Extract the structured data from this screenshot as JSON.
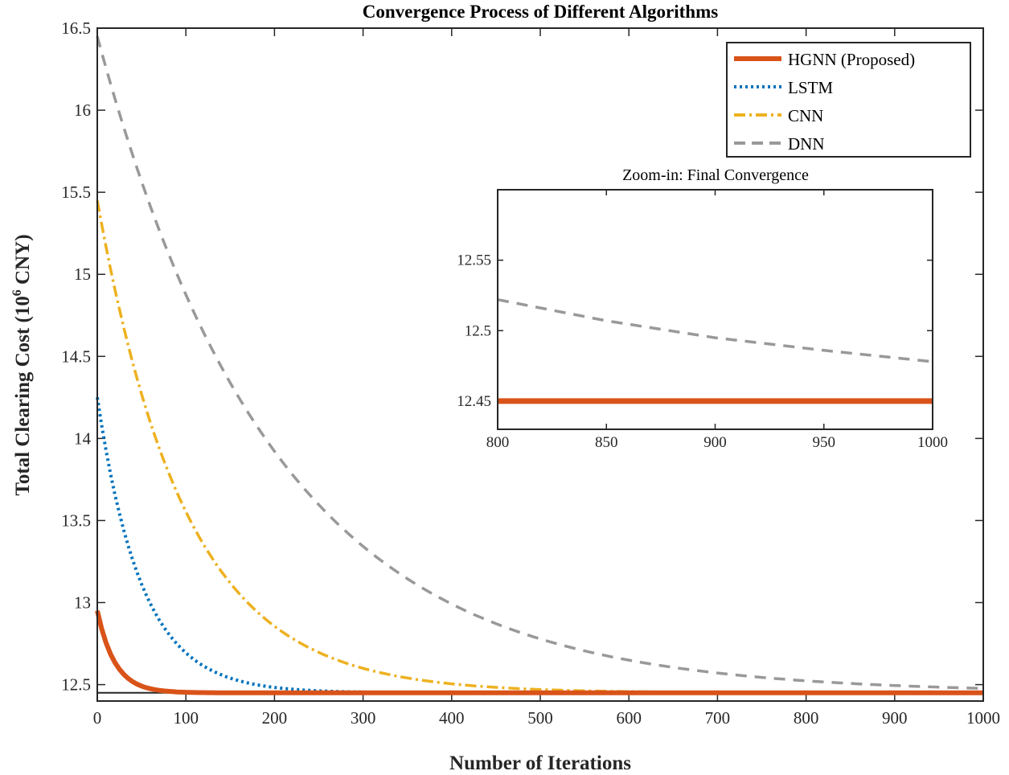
{
  "chart_data": [
    {
      "type": "line",
      "title": "Convergence Process of Different Algorithms",
      "xlabel": "Number of Iterations",
      "ylabel": "Total Clearing Cost (10",
      "ylabel_sup": "6",
      "ylabel_tail": " CNY)",
      "xlim": [
        0,
        1000
      ],
      "ylim": [
        12.4,
        16.5
      ],
      "xticks": [
        "0",
        "100",
        "200",
        "300",
        "400",
        "500",
        "600",
        "700",
        "800",
        "900",
        "1000"
      ],
      "yticks": [
        "12.5",
        "13",
        "13.5",
        "14",
        "14.5",
        "15",
        "15.5",
        "16",
        "16.5"
      ],
      "legend_position": "top-right",
      "reference_line": 12.45,
      "series": [
        {
          "name": "HGNN (Proposed)",
          "color": "#D95319",
          "style": "solid",
          "start": 12.95,
          "end": 12.45,
          "tau": 20
        },
        {
          "name": "LSTM",
          "color": "#0072BD",
          "style": "dotted",
          "start": 14.25,
          "end": 12.45,
          "tau": 50
        },
        {
          "name": "CNN",
          "color": "#EDB120",
          "style": "dashdot",
          "start": 15.45,
          "end": 12.45,
          "tau": 100
        },
        {
          "name": "DNN",
          "color": "#999999",
          "style": "dashed",
          "start": 16.45,
          "end": 12.45,
          "tau": 200
        }
      ]
    },
    {
      "type": "line",
      "title": "Zoom-in: Final Convergence",
      "xlim": [
        800,
        1000
      ],
      "ylim": [
        12.43,
        12.6
      ],
      "xticks": [
        "800",
        "850",
        "900",
        "950",
        "1000"
      ],
      "yticks": [
        "12.45",
        "12.5",
        "12.55"
      ],
      "series": [
        {
          "name": "HGNN (Proposed)",
          "color": "#D95319",
          "style": "solid",
          "values": [
            12.45,
            12.45,
            12.45,
            12.45,
            12.45
          ]
        },
        {
          "name": "DNN",
          "color": "#999999",
          "style": "dashed",
          "values": [
            12.522,
            12.507,
            12.495,
            12.486,
            12.478
          ]
        }
      ]
    }
  ]
}
